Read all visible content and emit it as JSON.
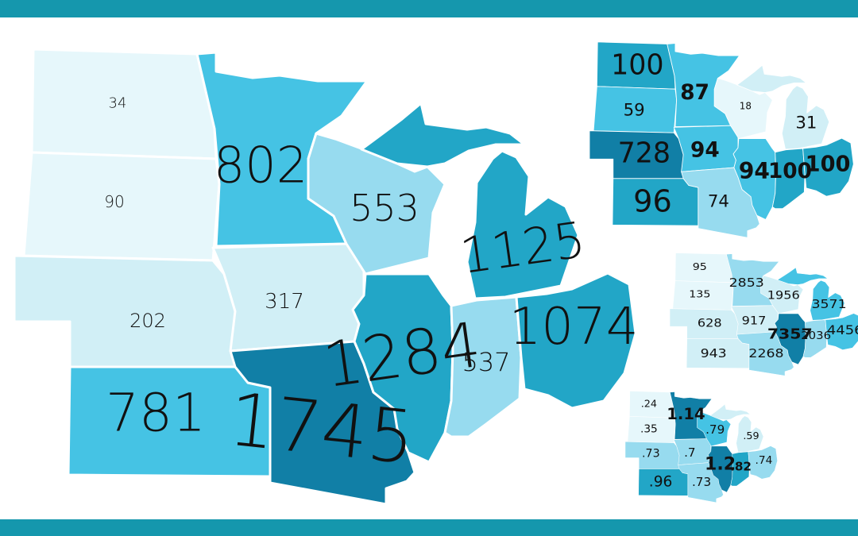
{
  "colors": {
    "band": "#1597ad"
  },
  "maps": [
    {
      "name": "main",
      "states": {
        "nd": {
          "value": "34",
          "fill": "#e6f7fb"
        },
        "sd": {
          "value": "90",
          "fill": "#e6f7fb"
        },
        "ne": {
          "value": "202",
          "fill": "#d1eff6"
        },
        "ks": {
          "value": "781",
          "fill": "#45c3e4"
        },
        "mn": {
          "value": "802",
          "fill": "#45c3e4"
        },
        "ia": {
          "value": "317",
          "fill": "#d1eff6"
        },
        "mo": {
          "value": "1745",
          "fill": "#117fa6"
        },
        "wi": {
          "value": "553",
          "fill": "#97dbef"
        },
        "il": {
          "value": "1284",
          "fill": "#22a6c7"
        },
        "mi": {
          "value": "1125",
          "fill": "#22a6c7"
        },
        "in": {
          "value": "537",
          "fill": "#97dbef"
        },
        "oh": {
          "value": "1074",
          "fill": "#22a6c7"
        }
      }
    },
    {
      "name": "top-right",
      "states": {
        "nd": {
          "value": "100",
          "fill": "#22a6c7"
        },
        "sd": {
          "value": "59",
          "fill": "#45c3e4"
        },
        "ne": {
          "value": "728",
          "fill": "#117fa6"
        },
        "ks": {
          "value": "96",
          "fill": "#22a6c7"
        },
        "mn": {
          "value": "87",
          "fill": "#45c3e4"
        },
        "ia": {
          "value": "94",
          "fill": "#45c3e4"
        },
        "mo": {
          "value": "74",
          "fill": "#97dbef"
        },
        "wi": {
          "value": "18",
          "fill": "#e6f7fb"
        },
        "il": {
          "value": "94",
          "fill": "#45c3e4"
        },
        "mi": {
          "value": "31",
          "fill": "#d1eff6"
        },
        "in": {
          "value": "100",
          "fill": "#22a6c7"
        },
        "oh": {
          "value": "100",
          "fill": "#22a6c7"
        }
      }
    },
    {
      "name": "middle-right",
      "states": {
        "nd": {
          "value": "95",
          "fill": "#e6f7fb"
        },
        "sd": {
          "value": "135",
          "fill": "#e6f7fb"
        },
        "ne": {
          "value": "628",
          "fill": "#d1eff6"
        },
        "ks": {
          "value": "943",
          "fill": "#d1eff6"
        },
        "mn": {
          "value": "2853",
          "fill": "#97dbef"
        },
        "ia": {
          "value": "917",
          "fill": "#d1eff6"
        },
        "mo": {
          "value": "2268",
          "fill": "#97dbef"
        },
        "wi": {
          "value": "1956",
          "fill": "#d1eff6"
        },
        "il": {
          "value": "7357",
          "fill": "#117fa6"
        },
        "mi": {
          "value": "3571",
          "fill": "#45c3e4"
        },
        "in": {
          "value": "2036",
          "fill": "#97dbef"
        },
        "oh": {
          "value": "4456",
          "fill": "#45c3e4"
        }
      }
    },
    {
      "name": "bottom-right",
      "states": {
        "nd": {
          "value": ".24",
          "fill": "#e6f7fb"
        },
        "sd": {
          "value": ".35",
          "fill": "#e6f7fb"
        },
        "ne": {
          "value": ".73",
          "fill": "#97dbef"
        },
        "ks": {
          "value": ".96",
          "fill": "#22a6c7"
        },
        "mn": {
          "value": "1.14",
          "fill": "#117fa6"
        },
        "ia": {
          "value": ".7",
          "fill": "#97dbef"
        },
        "mo": {
          "value": ".73",
          "fill": "#97dbef"
        },
        "wi": {
          "value": ".79",
          "fill": "#45c3e4"
        },
        "il": {
          "value": "1.2",
          "fill": "#117fa6"
        },
        "mi": {
          "value": ".59",
          "fill": "#d1eff6"
        },
        "in": {
          "value": ".82",
          "fill": "#22a6c7"
        },
        "oh": {
          "value": ".74",
          "fill": "#97dbef"
        }
      }
    }
  ]
}
